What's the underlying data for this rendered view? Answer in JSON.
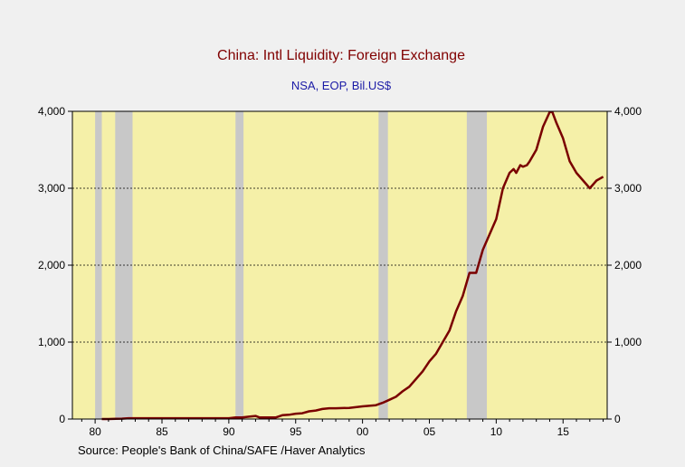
{
  "chart_data": {
    "type": "line",
    "title": "China: Intl Liquidity: Foreign Exchange",
    "subtitle": "NSA, EOP, Bil.US$",
    "source": "Source:   People's Bank of China/SAFE /Haver Analytics",
    "xlim": [
      1978.3,
      2018.3
    ],
    "ylim": [
      0,
      4000
    ],
    "x_ticks": [
      1980,
      1985,
      1990,
      1995,
      2000,
      2005,
      2010,
      2015
    ],
    "x_tick_labels": [
      "80",
      "85",
      "90",
      "95",
      "00",
      "05",
      "10",
      "15"
    ],
    "y_ticks": [
      0,
      1000,
      2000,
      3000,
      4000
    ],
    "y_tick_labels": [
      "0",
      "1,000",
      "2,000",
      "3,000",
      "4,000"
    ],
    "grid": "horizontal dashed",
    "plot_background": "#f5f0a8",
    "line_color": "#7a0000",
    "recession_color": "#c8c8c8",
    "recessions": [
      [
        1980.0,
        1980.5
      ],
      [
        1981.5,
        1982.8
      ],
      [
        1990.5,
        1991.1
      ],
      [
        2001.2,
        2001.9
      ],
      [
        2007.8,
        2009.3
      ]
    ],
    "series": [
      {
        "x": [
          1980.5,
          1981,
          1982,
          1982.5,
          1983,
          1985,
          1987,
          1989,
          1990,
          1990.5,
          1991,
          1991.5,
          1992,
          1992.3,
          1993,
          1993.5,
          1994,
          1994.5,
          1995,
          1995.5,
          1996,
          1996.5,
          1997,
          1997.5,
          1998,
          1999,
          2000,
          2001,
          2001.5,
          2002,
          2002.5,
          2003,
          2003.5,
          2004,
          2004.5,
          2005,
          2005.5,
          2006,
          2006.5,
          2007,
          2007.5,
          2008,
          2008.5,
          2009,
          2009.5,
          2010,
          2010.5,
          2011,
          2011.3,
          2011.5,
          2011.8,
          2012,
          2012.3,
          2012.5,
          2013,
          2013.5,
          2014,
          2014.2,
          2014.5,
          2015,
          2015.5,
          2016,
          2016.5,
          2017,
          2017.5,
          2018
        ],
        "y": [
          0,
          0,
          5,
          10,
          10,
          10,
          10,
          10,
          10,
          20,
          20,
          30,
          40,
          20,
          20,
          20,
          50,
          55,
          70,
          75,
          100,
          110,
          130,
          140,
          140,
          145,
          165,
          180,
          210,
          250,
          290,
          360,
          420,
          520,
          620,
          750,
          850,
          1000,
          1150,
          1400,
          1600,
          1900,
          1900,
          2200,
          2400,
          2600,
          3000,
          3200,
          3250,
          3200,
          3300,
          3280,
          3300,
          3350,
          3500,
          3800,
          3990,
          3990,
          3850,
          3650,
          3350,
          3200,
          3100,
          3000,
          3100,
          3150
        ]
      }
    ]
  }
}
